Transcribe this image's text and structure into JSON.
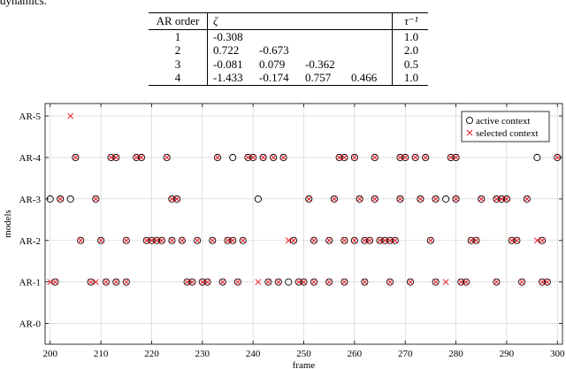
{
  "intro_text": "dynamics.",
  "table": {
    "headers": {
      "order": "AR order",
      "zeta": "ζ",
      "tau": "τ⁻¹"
    },
    "rows": [
      {
        "order": "1",
        "zeta": [
          "-0.308",
          "",
          "",
          ""
        ],
        "tau": "1.0"
      },
      {
        "order": "2",
        "zeta": [
          "0.722",
          "-0.673",
          "",
          ""
        ],
        "tau": "2.0"
      },
      {
        "order": "3",
        "zeta": [
          "-0.081",
          "0.079",
          "-0.362",
          ""
        ],
        "tau": "0.5"
      },
      {
        "order": "4",
        "zeta": [
          "-1.433",
          "-0.174",
          "0.757",
          "0.466"
        ],
        "tau": "1.0"
      }
    ]
  },
  "chart_data": {
    "type": "scatter",
    "xlabel": "frame",
    "ylabel": "models",
    "xlim": [
      199,
      301
    ],
    "xticks": [
      200,
      210,
      220,
      230,
      240,
      250,
      260,
      270,
      280,
      290,
      300
    ],
    "categories": [
      "AR-0",
      "AR-1",
      "AR-2",
      "AR-3",
      "AR-4",
      "AR-5"
    ],
    "grid": true,
    "legend_position": "top-right",
    "colors": {
      "active": "#000000",
      "selected": "#e8202a",
      "grid": "#cccccc"
    },
    "series": [
      {
        "name": "active context",
        "marker": "circle",
        "points": [
          [
            200,
            3
          ],
          [
            202,
            3
          ],
          [
            204,
            3
          ],
          [
            209,
            3
          ],
          [
            224,
            3
          ],
          [
            225,
            3
          ],
          [
            241,
            3
          ],
          [
            251,
            3
          ],
          [
            256,
            3
          ],
          [
            261,
            3
          ],
          [
            264,
            3
          ],
          [
            269,
            3
          ],
          [
            273,
            3
          ],
          [
            276,
            3
          ],
          [
            278,
            3
          ],
          [
            280,
            3
          ],
          [
            285,
            3
          ],
          [
            288,
            3
          ],
          [
            289,
            3
          ],
          [
            290,
            3
          ],
          [
            294,
            3
          ],
          [
            205,
            4
          ],
          [
            212,
            4
          ],
          [
            213,
            4
          ],
          [
            217,
            4
          ],
          [
            218,
            4
          ],
          [
            223,
            4
          ],
          [
            233,
            4
          ],
          [
            236,
            4
          ],
          [
            239,
            4
          ],
          [
            240,
            4
          ],
          [
            242,
            4
          ],
          [
            244,
            4
          ],
          [
            246,
            4
          ],
          [
            257,
            4
          ],
          [
            258,
            4
          ],
          [
            260,
            4
          ],
          [
            264,
            4
          ],
          [
            269,
            4
          ],
          [
            270,
            4
          ],
          [
            272,
            4
          ],
          [
            274,
            4
          ],
          [
            279,
            4
          ],
          [
            280,
            4
          ],
          [
            296,
            4
          ],
          [
            300,
            4
          ],
          [
            206,
            2
          ],
          [
            210,
            2
          ],
          [
            215,
            2
          ],
          [
            219,
            2
          ],
          [
            220,
            2
          ],
          [
            221,
            2
          ],
          [
            222,
            2
          ],
          [
            224,
            2
          ],
          [
            226,
            2
          ],
          [
            229,
            2
          ],
          [
            232,
            2
          ],
          [
            235,
            2
          ],
          [
            236,
            2
          ],
          [
            238,
            2
          ],
          [
            248,
            2
          ],
          [
            252,
            2
          ],
          [
            255,
            2
          ],
          [
            258,
            2
          ],
          [
            260,
            2
          ],
          [
            262,
            2
          ],
          [
            263,
            2
          ],
          [
            265,
            2
          ],
          [
            266,
            2
          ],
          [
            267,
            2
          ],
          [
            268,
            2
          ],
          [
            275,
            2
          ],
          [
            283,
            2
          ],
          [
            284,
            2
          ],
          [
            291,
            2
          ],
          [
            292,
            2
          ],
          [
            297,
            2
          ],
          [
            201,
            1
          ],
          [
            208,
            1
          ],
          [
            211,
            1
          ],
          [
            213,
            1
          ],
          [
            215,
            1
          ],
          [
            227,
            1
          ],
          [
            228,
            1
          ],
          [
            230,
            1
          ],
          [
            231,
            1
          ],
          [
            234,
            1
          ],
          [
            237,
            1
          ],
          [
            243,
            1
          ],
          [
            245,
            1
          ],
          [
            247,
            1
          ],
          [
            249,
            1
          ],
          [
            250,
            1
          ],
          [
            252,
            1
          ],
          [
            255,
            1
          ],
          [
            258,
            1
          ],
          [
            262,
            1
          ],
          [
            267,
            1
          ],
          [
            271,
            1
          ],
          [
            276,
            1
          ],
          [
            281,
            1
          ],
          [
            282,
            1
          ],
          [
            288,
            1
          ],
          [
            293,
            1
          ],
          [
            297,
            1
          ],
          [
            298,
            1
          ]
        ]
      },
      {
        "name": "selected context",
        "marker": "x",
        "points": [
          [
            204,
            5
          ],
          [
            202,
            3
          ],
          [
            209,
            3
          ],
          [
            224,
            3
          ],
          [
            225,
            3
          ],
          [
            251,
            3
          ],
          [
            256,
            3
          ],
          [
            261,
            3
          ],
          [
            264,
            3
          ],
          [
            269,
            3
          ],
          [
            273,
            3
          ],
          [
            276,
            3
          ],
          [
            280,
            3
          ],
          [
            285,
            3
          ],
          [
            288,
            3
          ],
          [
            289,
            3
          ],
          [
            290,
            3
          ],
          [
            294,
            3
          ],
          [
            205,
            4
          ],
          [
            212,
            4
          ],
          [
            213,
            4
          ],
          [
            217,
            4
          ],
          [
            218,
            4
          ],
          [
            223,
            4
          ],
          [
            233,
            4
          ],
          [
            239,
            4
          ],
          [
            240,
            4
          ],
          [
            242,
            4
          ],
          [
            244,
            4
          ],
          [
            246,
            4
          ],
          [
            257,
            4
          ],
          [
            258,
            4
          ],
          [
            260,
            4
          ],
          [
            264,
            4
          ],
          [
            269,
            4
          ],
          [
            270,
            4
          ],
          [
            272,
            4
          ],
          [
            274,
            4
          ],
          [
            279,
            4
          ],
          [
            280,
            4
          ],
          [
            300,
            4
          ],
          [
            206,
            2
          ],
          [
            210,
            2
          ],
          [
            215,
            2
          ],
          [
            219,
            2
          ],
          [
            220,
            2
          ],
          [
            221,
            2
          ],
          [
            222,
            2
          ],
          [
            224,
            2
          ],
          [
            226,
            2
          ],
          [
            229,
            2
          ],
          [
            232,
            2
          ],
          [
            235,
            2
          ],
          [
            236,
            2
          ],
          [
            238,
            2
          ],
          [
            247,
            2
          ],
          [
            248,
            2
          ],
          [
            252,
            2
          ],
          [
            255,
            2
          ],
          [
            258,
            2
          ],
          [
            260,
            2
          ],
          [
            262,
            2
          ],
          [
            263,
            2
          ],
          [
            265,
            2
          ],
          [
            266,
            2
          ],
          [
            267,
            2
          ],
          [
            268,
            2
          ],
          [
            275,
            2
          ],
          [
            283,
            2
          ],
          [
            284,
            2
          ],
          [
            291,
            2
          ],
          [
            292,
            2
          ],
          [
            296,
            2
          ],
          [
            297,
            2
          ],
          [
            200,
            1
          ],
          [
            201,
            1
          ],
          [
            208,
            1
          ],
          [
            209,
            1
          ],
          [
            211,
            1
          ],
          [
            213,
            1
          ],
          [
            215,
            1
          ],
          [
            227,
            1
          ],
          [
            228,
            1
          ],
          [
            230,
            1
          ],
          [
            231,
            1
          ],
          [
            234,
            1
          ],
          [
            237,
            1
          ],
          [
            241,
            1
          ],
          [
            243,
            1
          ],
          [
            245,
            1
          ],
          [
            249,
            1
          ],
          [
            250,
            1
          ],
          [
            252,
            1
          ],
          [
            255,
            1
          ],
          [
            258,
            1
          ],
          [
            262,
            1
          ],
          [
            267,
            1
          ],
          [
            271,
            1
          ],
          [
            276,
            1
          ],
          [
            278,
            1
          ],
          [
            281,
            1
          ],
          [
            282,
            1
          ],
          [
            288,
            1
          ],
          [
            293,
            1
          ],
          [
            297,
            1
          ],
          [
            298,
            1
          ]
        ]
      }
    ]
  }
}
